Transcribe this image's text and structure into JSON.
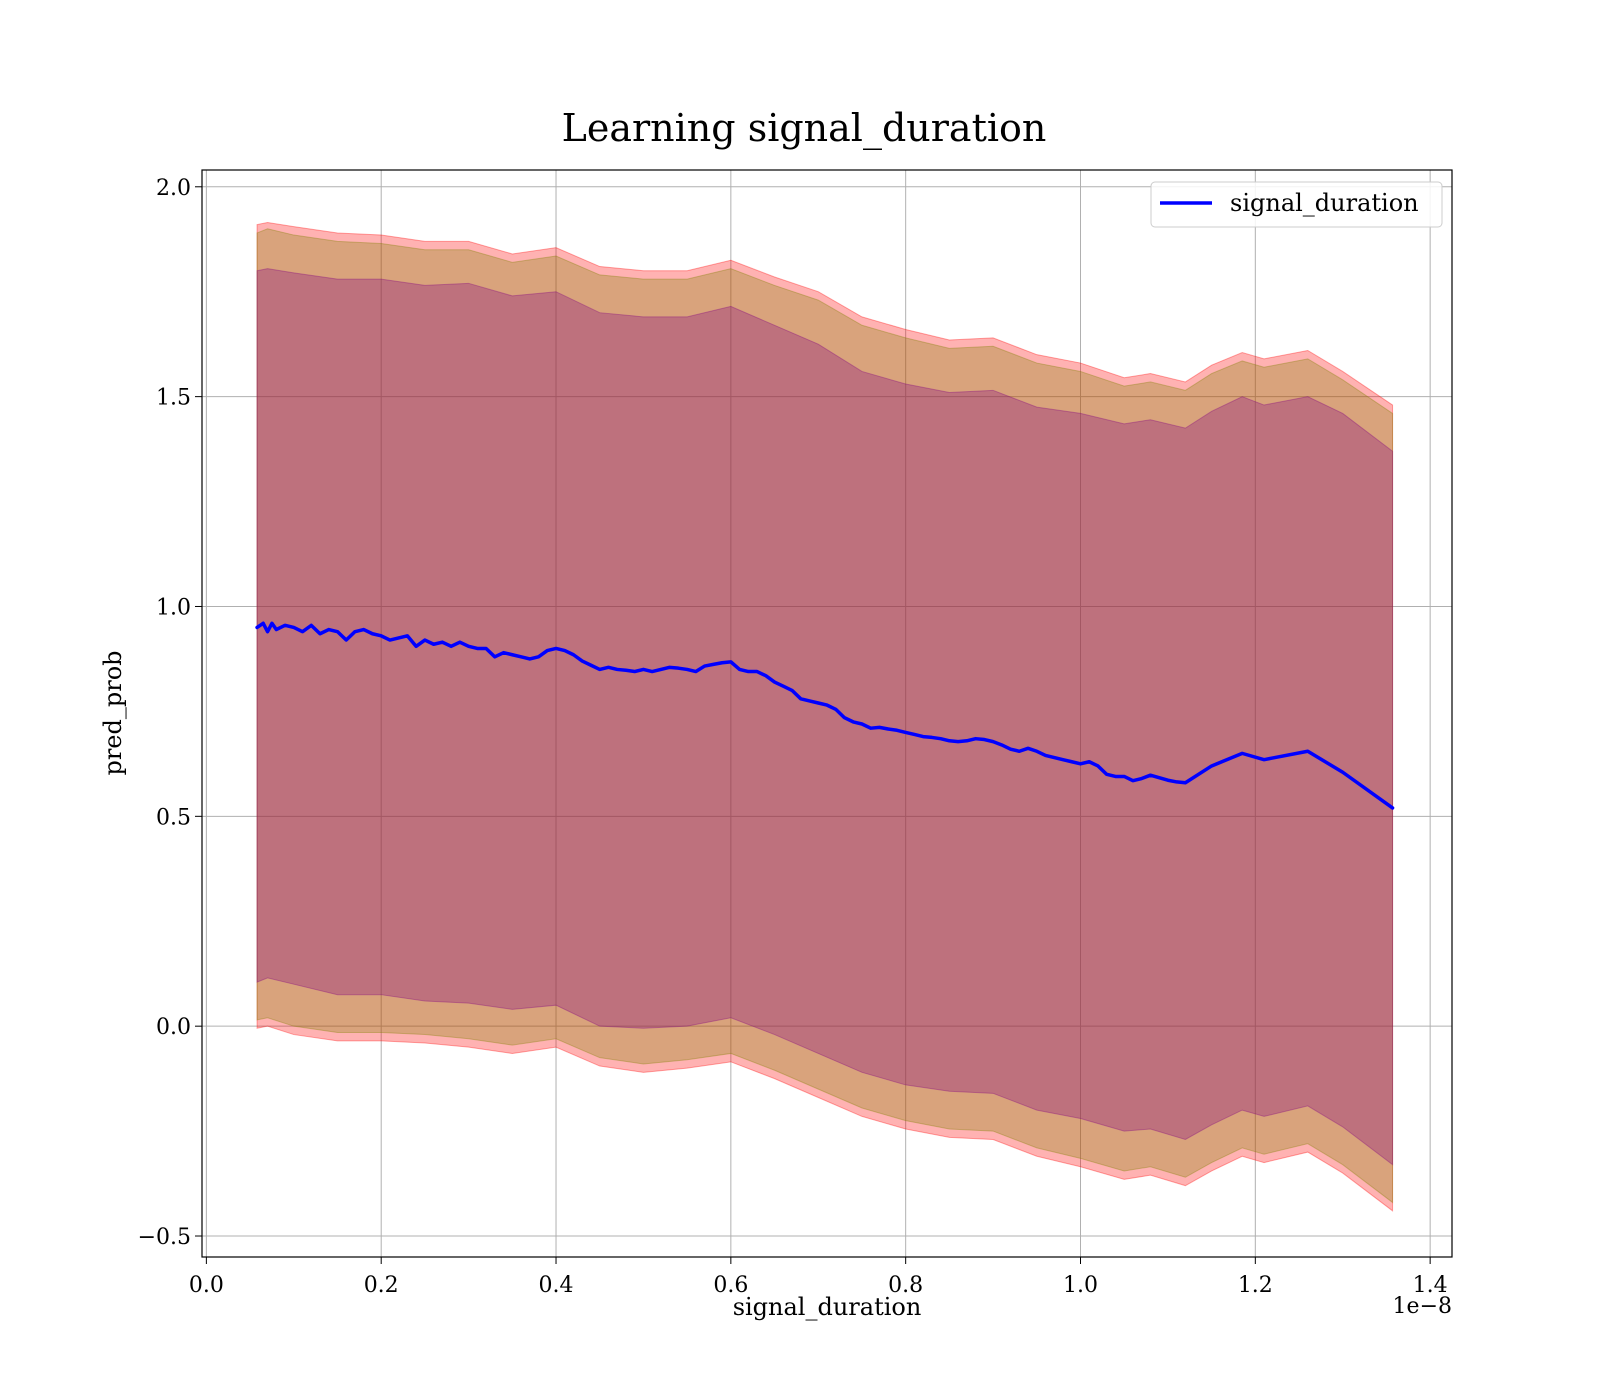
{
  "chart_data": {
    "type": "line",
    "title": "Learning signal_duration",
    "xlabel": "signal_duration",
    "ylabel": "pred_prob",
    "x_offset_label": "1e−8",
    "xlim": [
      -0.005,
      1.425
    ],
    "ylim": [
      -0.55,
      2.04
    ],
    "x_ticks": [
      0.0,
      0.2,
      0.4,
      0.6,
      0.8,
      1.0,
      1.2,
      1.4
    ],
    "x_tick_labels": [
      "0.0",
      "0.2",
      "0.4",
      "0.6",
      "0.8",
      "1.0",
      "1.2",
      "1.4"
    ],
    "y_ticks": [
      -0.5,
      0.0,
      0.5,
      1.0,
      1.5,
      2.0
    ],
    "y_tick_labels": [
      "−0.5",
      "0.0",
      "0.5",
      "1.0",
      "1.5",
      "2.0"
    ],
    "grid": true,
    "legend_position": "top-right",
    "series": [
      {
        "name": "signal_duration",
        "color": "#0000ff",
        "x": [
          0.058,
          0.065,
          0.07,
          0.075,
          0.08,
          0.085,
          0.09,
          0.1,
          0.11,
          0.12,
          0.13,
          0.14,
          0.15,
          0.16,
          0.17,
          0.18,
          0.19,
          0.2,
          0.21,
          0.22,
          0.23,
          0.24,
          0.25,
          0.26,
          0.27,
          0.28,
          0.29,
          0.3,
          0.31,
          0.32,
          0.33,
          0.34,
          0.35,
          0.36,
          0.37,
          0.38,
          0.39,
          0.4,
          0.41,
          0.42,
          0.43,
          0.44,
          0.45,
          0.46,
          0.47,
          0.48,
          0.49,
          0.5,
          0.51,
          0.52,
          0.53,
          0.54,
          0.55,
          0.56,
          0.57,
          0.58,
          0.59,
          0.6,
          0.61,
          0.62,
          0.63,
          0.64,
          0.65,
          0.66,
          0.67,
          0.68,
          0.69,
          0.7,
          0.71,
          0.72,
          0.73,
          0.74,
          0.75,
          0.76,
          0.77,
          0.78,
          0.79,
          0.8,
          0.81,
          0.82,
          0.83,
          0.84,
          0.85,
          0.86,
          0.87,
          0.88,
          0.89,
          0.9,
          0.91,
          0.92,
          0.93,
          0.94,
          0.95,
          0.96,
          0.97,
          0.98,
          0.99,
          1.0,
          1.01,
          1.02,
          1.03,
          1.04,
          1.05,
          1.06,
          1.07,
          1.08,
          1.09,
          1.1,
          1.11,
          1.12,
          1.15,
          1.185,
          1.21,
          1.26,
          1.3,
          1.357
        ],
        "values": [
          0.95,
          0.96,
          0.94,
          0.96,
          0.945,
          0.95,
          0.955,
          0.95,
          0.94,
          0.955,
          0.935,
          0.945,
          0.94,
          0.92,
          0.94,
          0.945,
          0.935,
          0.93,
          0.92,
          0.925,
          0.93,
          0.905,
          0.92,
          0.91,
          0.915,
          0.905,
          0.915,
          0.905,
          0.9,
          0.9,
          0.88,
          0.89,
          0.885,
          0.88,
          0.875,
          0.88,
          0.895,
          0.9,
          0.895,
          0.885,
          0.87,
          0.86,
          0.85,
          0.855,
          0.85,
          0.848,
          0.845,
          0.85,
          0.845,
          0.85,
          0.855,
          0.853,
          0.85,
          0.845,
          0.858,
          0.862,
          0.866,
          0.868,
          0.85,
          0.845,
          0.845,
          0.835,
          0.82,
          0.81,
          0.8,
          0.78,
          0.775,
          0.77,
          0.765,
          0.755,
          0.735,
          0.725,
          0.72,
          0.71,
          0.712,
          0.708,
          0.705,
          0.7,
          0.695,
          0.69,
          0.688,
          0.685,
          0.68,
          0.678,
          0.68,
          0.685,
          0.683,
          0.678,
          0.67,
          0.66,
          0.655,
          0.662,
          0.655,
          0.645,
          0.64,
          0.635,
          0.63,
          0.625,
          0.63,
          0.62,
          0.6,
          0.595,
          0.595,
          0.585,
          0.59,
          0.598,
          0.592,
          0.586,
          0.582,
          0.58,
          0.62,
          0.65,
          0.635,
          0.655,
          0.605,
          0.52
        ]
      }
    ],
    "bands": [
      {
        "color": "#ff0000",
        "opacity": 0.3,
        "x": [
          0.058,
          0.07,
          0.1,
          0.15,
          0.2,
          0.25,
          0.3,
          0.35,
          0.4,
          0.45,
          0.5,
          0.55,
          0.6,
          0.65,
          0.7,
          0.75,
          0.8,
          0.85,
          0.9,
          0.95,
          1.0,
          1.05,
          1.08,
          1.12,
          1.15,
          1.185,
          1.21,
          1.26,
          1.3,
          1.357
        ],
        "upper": [
          1.91,
          1.915,
          1.905,
          1.89,
          1.885,
          1.87,
          1.87,
          1.84,
          1.855,
          1.81,
          1.8,
          1.8,
          1.825,
          1.785,
          1.75,
          1.69,
          1.66,
          1.635,
          1.64,
          1.6,
          1.58,
          1.545,
          1.555,
          1.535,
          1.575,
          1.605,
          1.59,
          1.61,
          1.56,
          1.48
        ],
        "lower": [
          -0.005,
          0.0,
          -0.02,
          -0.035,
          -0.035,
          -0.04,
          -0.05,
          -0.065,
          -0.05,
          -0.095,
          -0.11,
          -0.1,
          -0.085,
          -0.125,
          -0.17,
          -0.215,
          -0.245,
          -0.265,
          -0.27,
          -0.31,
          -0.335,
          -0.365,
          -0.355,
          -0.38,
          -0.345,
          -0.31,
          -0.325,
          -0.3,
          -0.35,
          -0.44
        ]
      },
      {
        "color": "#808000",
        "opacity": 0.3,
        "x": [
          0.058,
          0.07,
          0.1,
          0.15,
          0.2,
          0.25,
          0.3,
          0.35,
          0.4,
          0.45,
          0.5,
          0.55,
          0.6,
          0.65,
          0.7,
          0.75,
          0.8,
          0.85,
          0.9,
          0.95,
          1.0,
          1.05,
          1.08,
          1.12,
          1.15,
          1.185,
          1.21,
          1.26,
          1.3,
          1.357
        ],
        "upper": [
          1.89,
          1.9,
          1.885,
          1.87,
          1.865,
          1.85,
          1.85,
          1.82,
          1.835,
          1.79,
          1.78,
          1.78,
          1.805,
          1.765,
          1.73,
          1.67,
          1.64,
          1.615,
          1.62,
          1.58,
          1.56,
          1.525,
          1.535,
          1.515,
          1.555,
          1.585,
          1.57,
          1.59,
          1.54,
          1.46
        ],
        "lower": [
          0.015,
          0.02,
          0.0,
          -0.015,
          -0.015,
          -0.02,
          -0.03,
          -0.045,
          -0.03,
          -0.075,
          -0.09,
          -0.08,
          -0.065,
          -0.105,
          -0.15,
          -0.195,
          -0.225,
          -0.245,
          -0.25,
          -0.29,
          -0.315,
          -0.345,
          -0.335,
          -0.36,
          -0.325,
          -0.29,
          -0.305,
          -0.28,
          -0.33,
          -0.42
        ]
      },
      {
        "color": "#800080",
        "opacity": 0.3,
        "x": [
          0.058,
          0.07,
          0.1,
          0.15,
          0.2,
          0.25,
          0.3,
          0.35,
          0.4,
          0.45,
          0.5,
          0.55,
          0.6,
          0.65,
          0.7,
          0.75,
          0.8,
          0.85,
          0.9,
          0.95,
          1.0,
          1.05,
          1.08,
          1.12,
          1.15,
          1.185,
          1.21,
          1.26,
          1.3,
          1.357
        ],
        "upper": [
          1.8,
          1.805,
          1.795,
          1.78,
          1.78,
          1.765,
          1.77,
          1.74,
          1.75,
          1.7,
          1.69,
          1.69,
          1.715,
          1.67,
          1.625,
          1.56,
          1.53,
          1.51,
          1.515,
          1.475,
          1.46,
          1.435,
          1.445,
          1.425,
          1.465,
          1.5,
          1.48,
          1.5,
          1.46,
          1.37
        ],
        "lower": [
          0.105,
          0.115,
          0.1,
          0.075,
          0.075,
          0.06,
          0.055,
          0.04,
          0.05,
          0.0,
          -0.005,
          0.0,
          0.02,
          -0.02,
          -0.065,
          -0.11,
          -0.14,
          -0.155,
          -0.16,
          -0.2,
          -0.22,
          -0.25,
          -0.245,
          -0.27,
          -0.235,
          -0.2,
          -0.215,
          -0.19,
          -0.24,
          -0.33
        ]
      }
    ]
  }
}
